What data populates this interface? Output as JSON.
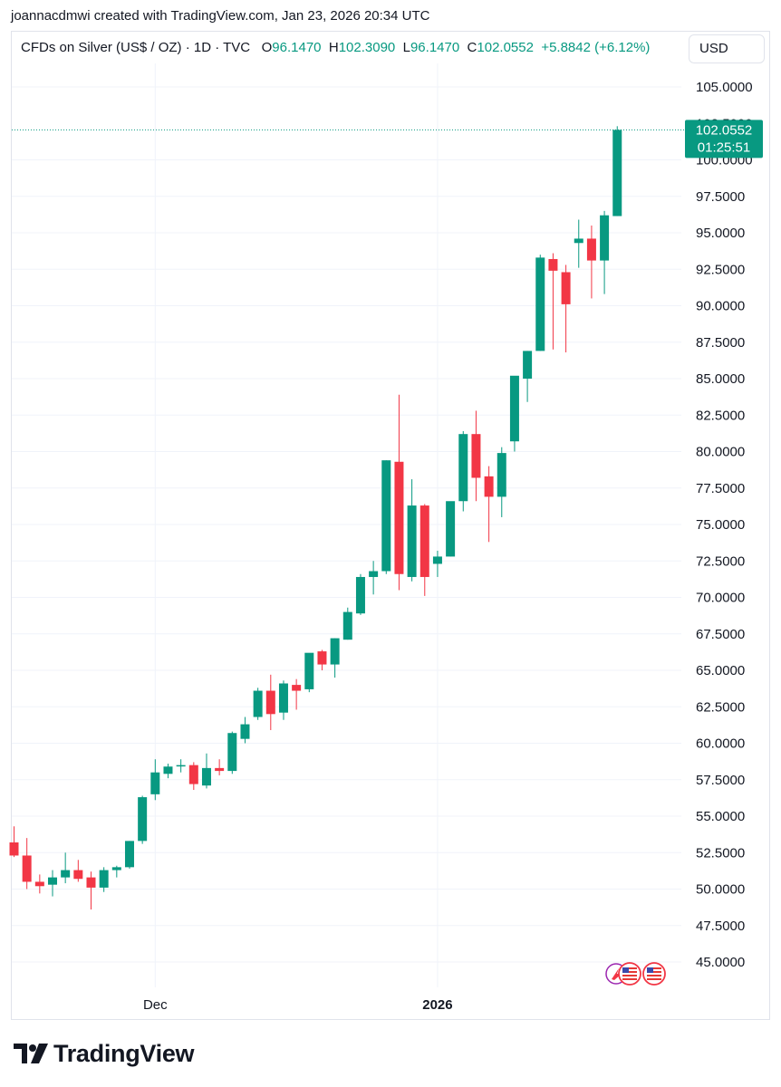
{
  "header": {
    "text": "joannacdmwi created with TradingView.com, Jan 23, 2026 20:34 UTC"
  },
  "legend": {
    "symbol": "CFDs on Silver (US$ / OZ) · 1D · TVC",
    "o_label": "O",
    "o_value": "96.1470",
    "h_label": "H",
    "h_value": "102.3090",
    "l_label": "L",
    "l_value": "96.1470",
    "c_label": "C",
    "c_value": "102.0552",
    "change": "+5.8842 (+6.12%)"
  },
  "currency_button": {
    "label": "USD"
  },
  "last_price": {
    "value": "102.0552",
    "countdown": "01:25:51"
  },
  "brand": {
    "name": "TradingView",
    "logo_icon": "tradingview-logo-icon"
  },
  "flags": [
    "tradingview-event-icon",
    "us-flag-icon",
    "us-flag-icon"
  ],
  "colors": {
    "up": "#089981",
    "down": "#f23645",
    "grid": "#f0f3fa"
  },
  "chart_data": {
    "type": "candlestick",
    "ylim": [
      43.75,
      107.5
    ],
    "y_ticks": [
      "105.0000",
      "100.0000",
      "97.5000",
      "95.0000",
      "92.5000",
      "90.0000",
      "87.5000",
      "85.0000",
      "82.5000",
      "80.0000",
      "77.5000",
      "75.0000",
      "72.5000",
      "70.0000",
      "67.5000",
      "65.0000",
      "62.5000",
      "60.0000",
      "57.5000",
      "55.0000",
      "52.5000",
      "50.0000",
      "47.5000",
      "45.0000"
    ],
    "x_labels": [
      {
        "label": "Dec",
        "at_index": 11,
        "bold": false
      },
      {
        "label": "2026",
        "at_index": 33,
        "bold": true
      }
    ],
    "candles": [
      {
        "o": 53.2,
        "h": 54.3,
        "l": 52.2,
        "c": 52.3
      },
      {
        "o": 52.3,
        "h": 53.5,
        "l": 50.0,
        "c": 50.5
      },
      {
        "o": 50.5,
        "h": 51.0,
        "l": 49.7,
        "c": 50.2
      },
      {
        "o": 50.3,
        "h": 51.3,
        "l": 49.5,
        "c": 50.8
      },
      {
        "o": 50.8,
        "h": 52.5,
        "l": 50.4,
        "c": 51.3
      },
      {
        "o": 51.3,
        "h": 52.0,
        "l": 50.5,
        "c": 50.7
      },
      {
        "o": 50.8,
        "h": 51.2,
        "l": 48.6,
        "c": 50.1
      },
      {
        "o": 50.1,
        "h": 51.5,
        "l": 49.8,
        "c": 51.3
      },
      {
        "o": 51.3,
        "h": 51.6,
        "l": 50.8,
        "c": 51.5
      },
      {
        "o": 51.5,
        "h": 53.3,
        "l": 51.4,
        "c": 53.3
      },
      {
        "o": 53.3,
        "h": 56.4,
        "l": 53.1,
        "c": 56.3
      },
      {
        "o": 56.5,
        "h": 58.9,
        "l": 56.1,
        "c": 58.0
      },
      {
        "o": 57.9,
        "h": 58.6,
        "l": 57.6,
        "c": 58.4
      },
      {
        "o": 58.5,
        "h": 58.9,
        "l": 58.0,
        "c": 58.5
      },
      {
        "o": 58.5,
        "h": 58.7,
        "l": 56.8,
        "c": 57.2
      },
      {
        "o": 57.1,
        "h": 59.3,
        "l": 56.9,
        "c": 58.3
      },
      {
        "o": 58.3,
        "h": 58.9,
        "l": 57.8,
        "c": 58.1
      },
      {
        "o": 58.1,
        "h": 60.8,
        "l": 57.9,
        "c": 60.7
      },
      {
        "o": 60.3,
        "h": 61.8,
        "l": 60.0,
        "c": 61.3
      },
      {
        "o": 61.8,
        "h": 63.8,
        "l": 61.6,
        "c": 63.6
      },
      {
        "o": 63.6,
        "h": 64.7,
        "l": 60.9,
        "c": 62.0
      },
      {
        "o": 62.1,
        "h": 64.3,
        "l": 61.6,
        "c": 64.1
      },
      {
        "o": 64.0,
        "h": 64.4,
        "l": 62.3,
        "c": 63.6
      },
      {
        "o": 63.7,
        "h": 66.1,
        "l": 63.5,
        "c": 66.2
      },
      {
        "o": 66.3,
        "h": 66.4,
        "l": 65.0,
        "c": 65.4
      },
      {
        "o": 65.4,
        "h": 67.2,
        "l": 64.5,
        "c": 67.2
      },
      {
        "o": 67.1,
        "h": 69.3,
        "l": 67.1,
        "c": 69.0
      },
      {
        "o": 68.9,
        "h": 71.6,
        "l": 68.8,
        "c": 71.4
      },
      {
        "o": 71.4,
        "h": 72.5,
        "l": 70.2,
        "c": 71.8
      },
      {
        "o": 71.8,
        "h": 79.4,
        "l": 71.6,
        "c": 79.4
      },
      {
        "o": 79.3,
        "h": 83.9,
        "l": 70.5,
        "c": 71.6
      },
      {
        "o": 71.4,
        "h": 78.1,
        "l": 71.1,
        "c": 76.3
      },
      {
        "o": 76.3,
        "h": 76.4,
        "l": 70.1,
        "c": 71.4
      },
      {
        "o": 72.3,
        "h": 73.2,
        "l": 71.4,
        "c": 72.8
      },
      {
        "o": 72.8,
        "h": 76.5,
        "l": 72.8,
        "c": 76.6
      },
      {
        "o": 76.6,
        "h": 81.4,
        "l": 75.9,
        "c": 81.2
      },
      {
        "o": 81.2,
        "h": 82.8,
        "l": 76.6,
        "c": 78.2
      },
      {
        "o": 78.3,
        "h": 79.0,
        "l": 73.8,
        "c": 76.9
      },
      {
        "o": 76.9,
        "h": 80.3,
        "l": 75.5,
        "c": 79.9
      },
      {
        "o": 80.7,
        "h": 85.1,
        "l": 80.0,
        "c": 85.2
      },
      {
        "o": 85.0,
        "h": 86.9,
        "l": 83.4,
        "c": 86.9
      },
      {
        "o": 86.9,
        "h": 93.5,
        "l": 86.9,
        "c": 93.3
      },
      {
        "o": 93.2,
        "h": 93.6,
        "l": 87.0,
        "c": 92.4
      },
      {
        "o": 92.3,
        "h": 92.8,
        "l": 86.8,
        "c": 90.1
      },
      {
        "o": 94.3,
        "h": 95.9,
        "l": 92.6,
        "c": 94.6
      },
      {
        "o": 94.6,
        "h": 95.5,
        "l": 90.5,
        "c": 93.1
      },
      {
        "o": 93.1,
        "h": 96.5,
        "l": 90.8,
        "c": 96.2
      },
      {
        "o": 96.147,
        "h": 102.309,
        "l": 96.147,
        "c": 102.0552
      }
    ]
  }
}
